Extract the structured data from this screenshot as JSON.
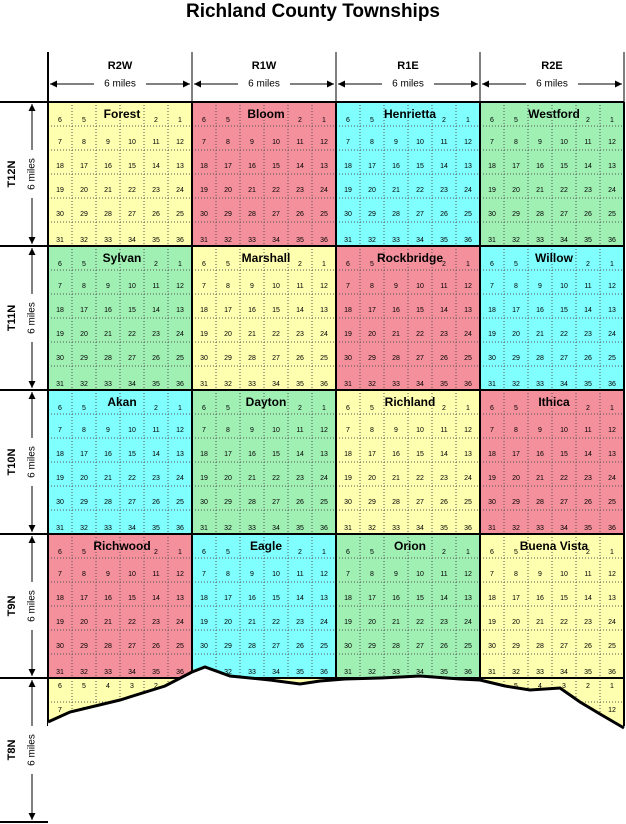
{
  "title": "Richland County Townships",
  "columns": [
    {
      "label": "R2W",
      "distance": "6 miles"
    },
    {
      "label": "R1W",
      "distance": "6 miles"
    },
    {
      "label": "R1E",
      "distance": "6 miles"
    },
    {
      "label": "R2E",
      "distance": "6 miles"
    }
  ],
  "rows": [
    {
      "label": "T12N",
      "distance": "6 miles"
    },
    {
      "label": "T11N",
      "distance": "6 miles"
    },
    {
      "label": "T10N",
      "distance": "6 miles"
    },
    {
      "label": "T9N",
      "distance": "6 miles"
    },
    {
      "label": "T8N",
      "distance": "6 miles"
    }
  ],
  "sections": [
    [
      6,
      5,
      4,
      3,
      2,
      1
    ],
    [
      7,
      8,
      9,
      10,
      11,
      12
    ],
    [
      18,
      17,
      16,
      15,
      14,
      13
    ],
    [
      19,
      20,
      21,
      22,
      23,
      24
    ],
    [
      30,
      29,
      28,
      27,
      26,
      25
    ],
    [
      31,
      32,
      33,
      34,
      35,
      36
    ]
  ],
  "townships": [
    [
      {
        "name": "Forest",
        "color": "#ffffb0"
      },
      {
        "name": "Bloom",
        "color": "#f4909c"
      },
      {
        "name": "Henrietta",
        "color": "#80ffff"
      },
      {
        "name": "Westford",
        "color": "#a0f0b4"
      }
    ],
    [
      {
        "name": "Sylvan",
        "color": "#a0f0b4"
      },
      {
        "name": "Marshall",
        "color": "#ffffb0"
      },
      {
        "name": "Rockbridge",
        "color": "#f4909c"
      },
      {
        "name": "Willow",
        "color": "#80ffff"
      }
    ],
    [
      {
        "name": "Akan",
        "color": "#80ffff"
      },
      {
        "name": "Dayton",
        "color": "#a0f0b4"
      },
      {
        "name": "Richland",
        "color": "#ffffb0"
      },
      {
        "name": "Ithica",
        "color": "#f4909c"
      }
    ],
    [
      {
        "name": "Richwood",
        "color": "#f4909c"
      },
      {
        "name": "Eagle",
        "color": "#80ffff"
      },
      {
        "name": "Orion",
        "color": "#a0f0b4"
      },
      {
        "name": "Buena Vista",
        "color": "#ffffb0"
      }
    ]
  ]
}
